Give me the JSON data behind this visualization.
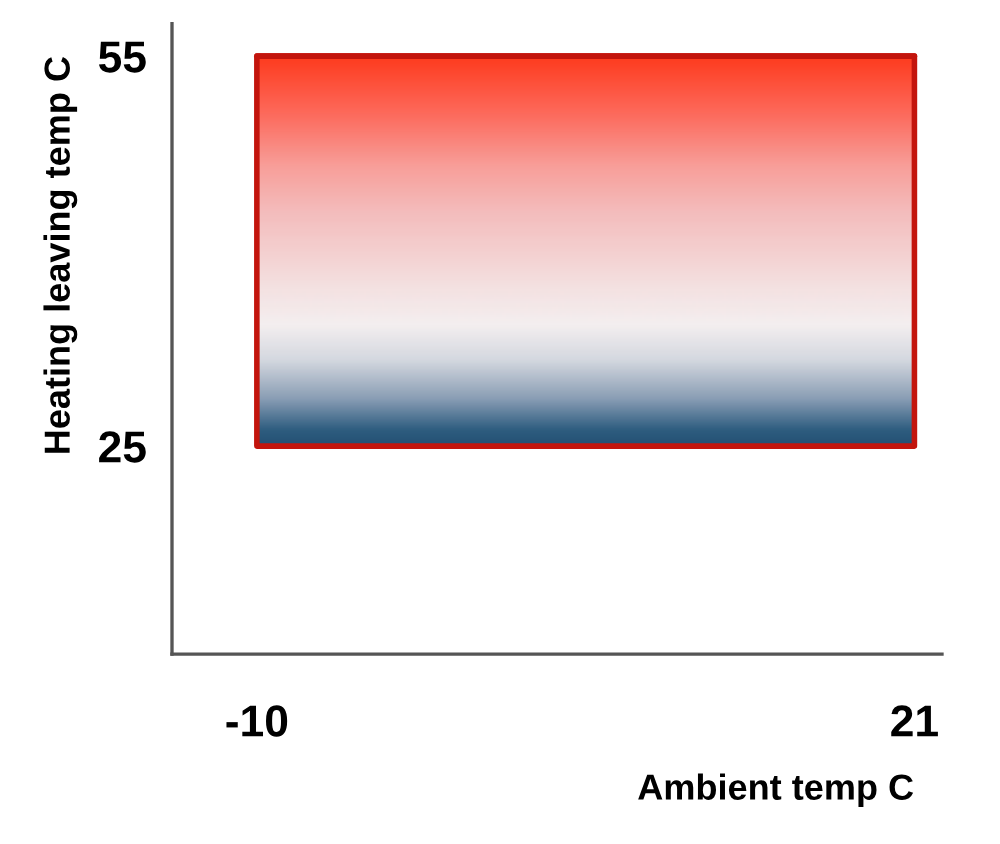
{
  "chart_data": {
    "type": "line",
    "xlabel": "Ambient temp C",
    "ylabel": "Heating leaving temp C",
    "x": [
      -10,
      21
    ],
    "series": [
      {
        "color": "#c3150d",
        "values": [
          55,
          55
        ],
        "lower": [
          25,
          25
        ],
        "upper": [
          55,
          55
        ]
      }
    ],
    "xlim": [
      -14,
      22.3
    ],
    "ylim": [
      9,
      57.5
    ],
    "xticks": [
      -10,
      21
    ],
    "yticks": [
      25,
      55
    ]
  }
}
